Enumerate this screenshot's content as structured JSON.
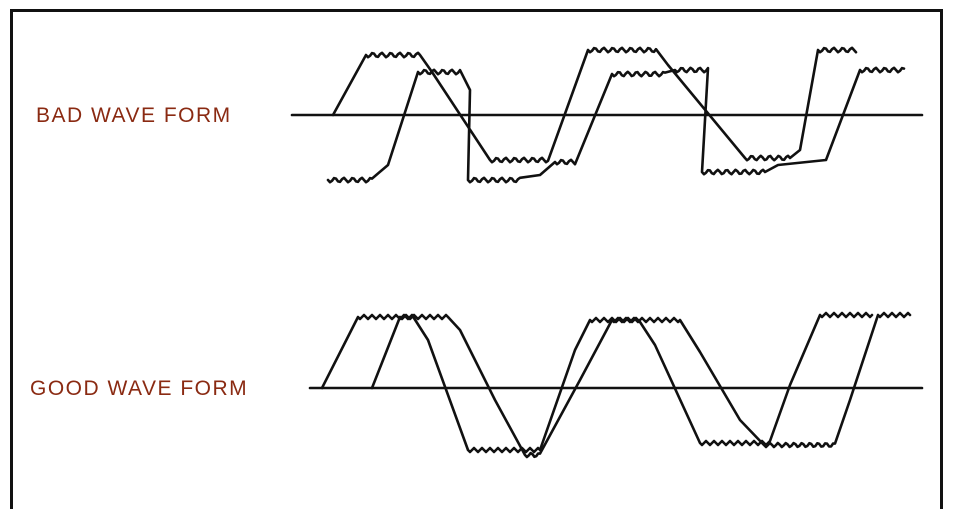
{
  "labels": {
    "bad": "BAD WAVE FORM",
    "good": "GOOD WAVE FORM"
  },
  "colors": {
    "label": "#8a2a12",
    "line": "#111111",
    "frame": "#111111"
  }
}
